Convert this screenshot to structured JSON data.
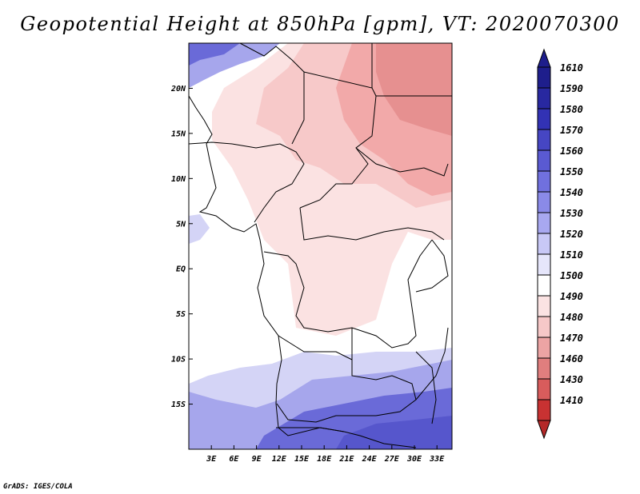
{
  "title": "Geopotential Height at 850hPa [gpm], VT: 2020070300",
  "credit": "GrADS: IGES/COLA",
  "map": {
    "lon_range": [
      0,
      35
    ],
    "lat_range": [
      -20,
      25
    ],
    "y_ticks": [
      {
        "lat": 20,
        "label": "20N"
      },
      {
        "lat": 15,
        "label": "15N"
      },
      {
        "lat": 10,
        "label": "10N"
      },
      {
        "lat": 5,
        "label": "5N"
      },
      {
        "lat": 0,
        "label": "EQ"
      },
      {
        "lat": -5,
        "label": "5S"
      },
      {
        "lat": -10,
        "label": "10S"
      },
      {
        "lat": -15,
        "label": "15S"
      }
    ],
    "x_ticks": [
      {
        "lon": 3,
        "label": "3E"
      },
      {
        "lon": 6,
        "label": "6E"
      },
      {
        "lon": 9,
        "label": "9E"
      },
      {
        "lon": 12,
        "label": "12E"
      },
      {
        "lon": 15,
        "label": "15E"
      },
      {
        "lon": 18,
        "label": "18E"
      },
      {
        "lon": 21,
        "label": "21E"
      },
      {
        "lon": 24,
        "label": "24E"
      },
      {
        "lon": 27,
        "label": "27E"
      },
      {
        "lon": 30,
        "label": "30E"
      },
      {
        "lon": 33,
        "label": "33E"
      }
    ]
  },
  "colorbar": {
    "levels": [
      {
        "label": "1610",
        "color": "#1e1e8c"
      },
      {
        "label": "1590",
        "color": "#2828a0"
      },
      {
        "label": "1580",
        "color": "#3232b4"
      },
      {
        "label": "1570",
        "color": "#4646c3"
      },
      {
        "label": "1560",
        "color": "#5a5ad2"
      },
      {
        "label": "1550",
        "color": "#7070de"
      },
      {
        "label": "1540",
        "color": "#8a8ae8"
      },
      {
        "label": "1530",
        "color": "#a8a8f0"
      },
      {
        "label": "1520",
        "color": "#c8c8f6"
      },
      {
        "label": "1510",
        "color": "#e6e6fb"
      },
      {
        "label": "1500",
        "color": "#ffffff"
      },
      {
        "label": "1490",
        "color": "#fbe3e3"
      },
      {
        "label": "1480",
        "color": "#f6c8c8"
      },
      {
        "label": "1470",
        "color": "#eca4a4"
      },
      {
        "label": "1460",
        "color": "#e07e7e"
      },
      {
        "label": "1430",
        "color": "#d85c5c"
      },
      {
        "label": "1410",
        "color": "#c83232"
      }
    ],
    "bottom_color": "#b42828"
  },
  "zones": {
    "high_color": "#6a6ad8",
    "mid_high_color": "#a6a6ec",
    "low_mid_color": "#d4d4f6",
    "warm1_color": "#fbe2e2",
    "warm2_color": "#f7c9c9",
    "warm3_color": "#f2a9a9",
    "warm4_color": "#e69090"
  }
}
